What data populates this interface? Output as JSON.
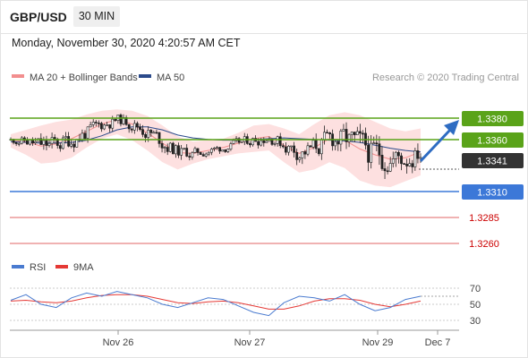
{
  "header": {
    "symbol": "GBP/USD",
    "timeframe": "30 MIN",
    "timestamp": "Monday, November 30, 2020 4:20:57 AM CET"
  },
  "legend": {
    "ma20_label": "MA 20 + Bollinger Bands",
    "ma50_label": "MA 50",
    "credit": "Research © 2020 Trading Central",
    "rsi_label": "RSI",
    "rsi_ma_label": "9MA"
  },
  "colors": {
    "resistance": "#5aa319",
    "support": "#3c78d8",
    "target": "#e06666",
    "ma20": "#f28e8e",
    "ma50": "#2b4a8b",
    "bollinger_fill": "#fde0e0",
    "candle": "#222222",
    "arrow": "#2e6cc2",
    "rsi": "#4a7bd0",
    "rsi_ma": "#e53935",
    "current_price": "#333333"
  },
  "chart_data": [
    {
      "type": "candlestick",
      "instrument": "GBP/USD",
      "timeframe": "30 MIN",
      "x_tick_labels": [
        "Nov 26",
        "Nov 27",
        "Nov 29",
        "Dec 7"
      ],
      "ylim": [
        1.324,
        1.3405
      ],
      "series": [
        {
          "name": "MA 20 + Bollinger Bands"
        },
        {
          "name": "MA 50"
        }
      ],
      "price_levels": [
        {
          "label": "1.3380",
          "value": 1.338,
          "kind": "resistance"
        },
        {
          "label": "1.3360",
          "value": 1.336,
          "kind": "resistance"
        },
        {
          "label": "1.3341",
          "value": 1.3341,
          "kind": "current"
        },
        {
          "label": "1.3310",
          "value": 1.331,
          "kind": "support"
        },
        {
          "label": "1.3285",
          "value": 1.3285,
          "kind": "target"
        },
        {
          "label": "1.3260",
          "value": 1.326,
          "kind": "target"
        }
      ],
      "forecast_arrow": {
        "from": 1.3342,
        "to": 1.338,
        "direction": "up"
      },
      "bollinger_upper": [
        1.3358,
        1.3364,
        1.337,
        1.3375,
        1.3378,
        1.3385,
        1.339,
        1.3392,
        1.339,
        1.3383,
        1.337,
        1.3355,
        1.3348,
        1.335,
        1.3352,
        1.336,
        1.337,
        1.3372,
        1.3366,
        1.3358,
        1.3372,
        1.3384,
        1.3388,
        1.3384,
        1.3375,
        1.3366,
        1.3362,
        1.3366
      ],
      "bollinger_lower": [
        1.334,
        1.333,
        1.3318,
        1.332,
        1.3326,
        1.334,
        1.3352,
        1.3358,
        1.335,
        1.3336,
        1.332,
        1.331,
        1.3318,
        1.3324,
        1.3328,
        1.3332,
        1.3334,
        1.3336,
        1.332,
        1.3306,
        1.331,
        1.332,
        1.3312,
        1.3295,
        1.3288,
        1.3286,
        1.3294,
        1.3302
      ],
      "ma20": [
        1.335,
        1.3348,
        1.3342,
        1.3345,
        1.3352,
        1.3362,
        1.3372,
        1.3378,
        1.3372,
        1.336,
        1.3346,
        1.3333,
        1.3332,
        1.3336,
        1.334,
        1.3346,
        1.3352,
        1.3355,
        1.3343,
        1.3332,
        1.334,
        1.3352,
        1.335,
        1.3338,
        1.333,
        1.3324,
        1.3326,
        1.3334
      ],
      "ma50": [
        1.3348,
        1.3347,
        1.3346,
        1.3346,
        1.3347,
        1.335,
        1.3356,
        1.3364,
        1.3368,
        1.3368,
        1.3364,
        1.3357,
        1.3353,
        1.3351,
        1.335,
        1.335,
        1.3351,
        1.3352,
        1.3353,
        1.3352,
        1.3351,
        1.335,
        1.3349,
        1.3347,
        1.3343,
        1.3339,
        1.3336,
        1.3334
      ]
    },
    {
      "type": "line",
      "indicator": "RSI",
      "y_tick_labels": [
        "70",
        "50",
        "30"
      ],
      "ylim": [
        20,
        80
      ],
      "series": [
        {
          "name": "RSI",
          "values": [
            55,
            62,
            50,
            46,
            58,
            64,
            60,
            66,
            62,
            58,
            50,
            46,
            52,
            58,
            56,
            48,
            40,
            36,
            52,
            60,
            58,
            54,
            62,
            50,
            42,
            46,
            56,
            60
          ]
        },
        {
          "name": "9MA",
          "values": [
            54,
            55,
            53,
            52,
            54,
            58,
            61,
            62,
            62,
            60,
            56,
            52,
            51,
            53,
            54,
            52,
            48,
            44,
            44,
            48,
            54,
            57,
            57,
            55,
            50,
            47,
            50,
            54
          ]
        }
      ]
    }
  ]
}
